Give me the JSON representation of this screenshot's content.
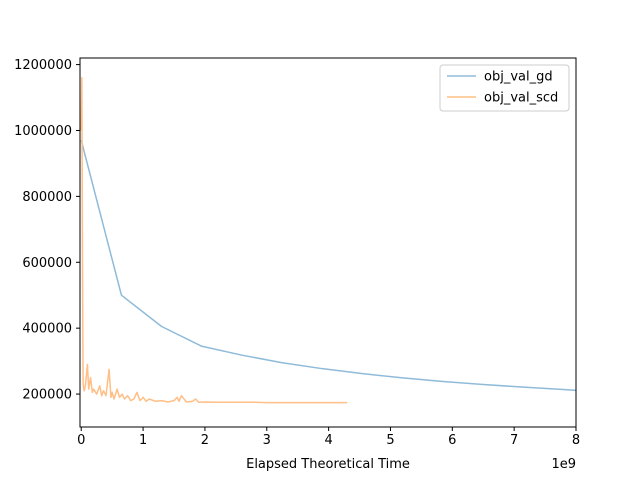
{
  "chart_data": {
    "type": "line",
    "title": "",
    "xlabel": "Elapsed Theoretical Time",
    "ylabel": "",
    "x_offset_text": "1e9",
    "xlim": [
      -0.02,
      8.0
    ],
    "ylim": [
      100000,
      1220000
    ],
    "xticks": [
      0,
      1,
      2,
      3,
      4,
      5,
      6,
      7,
      8
    ],
    "xtick_labels": [
      "0",
      "1",
      "2",
      "3",
      "4",
      "5",
      "6",
      "7",
      "8"
    ],
    "yticks": [
      200000,
      400000,
      600000,
      800000,
      1000000,
      1200000
    ],
    "ytick_labels": [
      "200000",
      "400000",
      "600000",
      "800000",
      "1000000",
      "1200000"
    ],
    "grid": false,
    "legend_position": "top-right",
    "series": [
      {
        "name": "obj_val_gd",
        "color": "#8fbbd9",
        "x": [
          0,
          0.65,
          1.3,
          1.95,
          2.6,
          3.25,
          3.9,
          4.55,
          5.2,
          5.85,
          6.5,
          7.15,
          7.8,
          8.0
        ],
        "y": [
          970000,
          500000,
          405000,
          345000,
          318000,
          295000,
          277000,
          262000,
          249000,
          238000,
          229000,
          221000,
          214000,
          211000
        ]
      },
      {
        "name": "obj_val_scd",
        "color": "#ffbf86",
        "x": [
          0,
          0.01,
          0.02,
          0.03,
          0.04,
          0.05,
          0.07,
          0.1,
          0.12,
          0.15,
          0.18,
          0.2,
          0.25,
          0.3,
          0.33,
          0.36,
          0.4,
          0.45,
          0.48,
          0.5,
          0.53,
          0.58,
          0.62,
          0.66,
          0.7,
          0.75,
          0.8,
          0.85,
          0.9,
          0.95,
          1.0,
          1.05,
          1.1,
          1.2,
          1.3,
          1.4,
          1.5,
          1.55,
          1.58,
          1.62,
          1.7,
          1.8,
          1.85,
          1.9,
          2.0,
          2.2,
          2.4,
          2.6,
          2.8,
          3.0,
          3.3,
          3.6,
          3.9,
          4.3
        ],
        "y": [
          1000000,
          1160000,
          600000,
          235000,
          215000,
          210000,
          230000,
          290000,
          215000,
          250000,
          205000,
          215000,
          200000,
          225000,
          195000,
          210000,
          195000,
          275000,
          190000,
          205000,
          185000,
          215000,
          190000,
          200000,
          185000,
          195000,
          180000,
          185000,
          205000,
          180000,
          190000,
          178000,
          185000,
          178000,
          180000,
          176000,
          180000,
          190000,
          178000,
          195000,
          176000,
          178000,
          185000,
          175000,
          176000,
          175000,
          175000,
          175000,
          175000,
          174000,
          174000,
          174000,
          174000,
          174000
        ]
      }
    ]
  }
}
